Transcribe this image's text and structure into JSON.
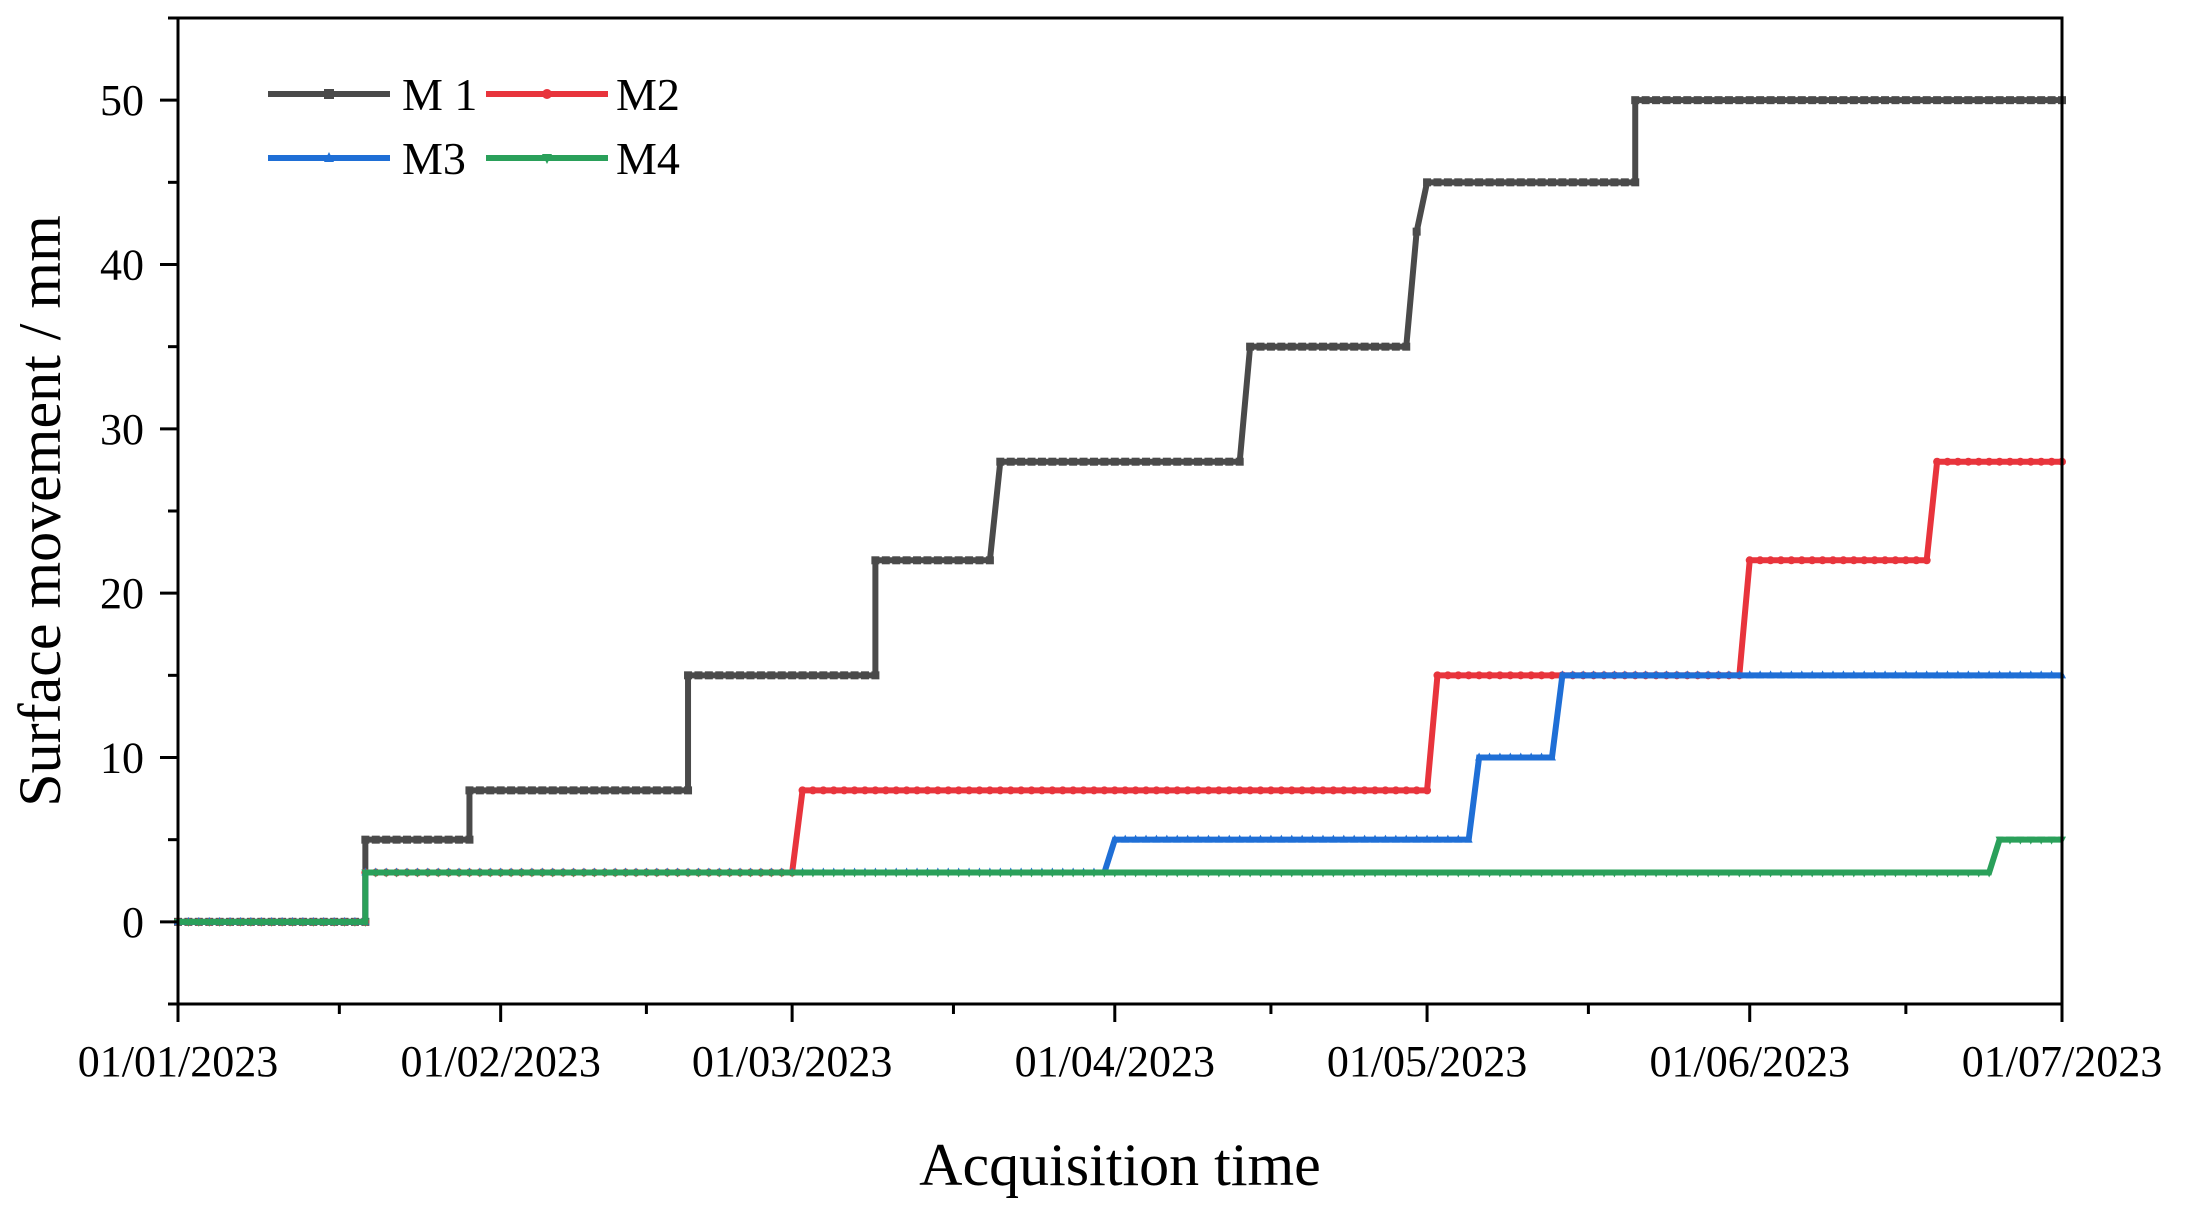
{
  "chart_data": {
    "type": "line",
    "xlabel": "Acquisition time",
    "ylabel": "Surface movement / mm",
    "x_ticks": [
      "01/01/2023",
      "01/02/2023",
      "01/03/2023",
      "01/04/2023",
      "01/05/2023",
      "01/06/2023",
      "01/07/2023"
    ],
    "y_ticks": [
      0,
      10,
      20,
      30,
      40,
      50
    ],
    "xlim": [
      "2023-01-01",
      "2023-07-01"
    ],
    "ylim": [
      -5,
      55
    ],
    "grid": false,
    "legend_position": "top-left",
    "series": [
      {
        "name": "M 1",
        "color": "#4a4a4a",
        "marker": "square",
        "points": [
          [
            "2023-01-01",
            0
          ],
          [
            "2023-01-19",
            0
          ],
          [
            "2023-01-19",
            5
          ],
          [
            "2023-01-29",
            5
          ],
          [
            "2023-01-29",
            8
          ],
          [
            "2023-02-19",
            8
          ],
          [
            "2023-02-19",
            15
          ],
          [
            "2023-03-09",
            15
          ],
          [
            "2023-03-09",
            22
          ],
          [
            "2023-03-20",
            22
          ],
          [
            "2023-03-21",
            28
          ],
          [
            "2023-04-13",
            28
          ],
          [
            "2023-04-14",
            35
          ],
          [
            "2023-04-29",
            35
          ],
          [
            "2023-04-30",
            42
          ],
          [
            "2023-05-01",
            45
          ],
          [
            "2023-05-21",
            45
          ],
          [
            "2023-05-21",
            50
          ],
          [
            "2023-07-01",
            50
          ]
        ]
      },
      {
        "name": "M2",
        "color": "#e8343c",
        "marker": "circle",
        "points": [
          [
            "2023-01-01",
            0
          ],
          [
            "2023-01-19",
            0
          ],
          [
            "2023-01-19",
            3
          ],
          [
            "2023-03-01",
            3
          ],
          [
            "2023-03-02",
            8
          ],
          [
            "2023-05-01",
            8
          ],
          [
            "2023-05-02",
            15
          ],
          [
            "2023-05-31",
            15
          ],
          [
            "2023-06-01",
            22
          ],
          [
            "2023-06-18",
            22
          ],
          [
            "2023-06-19",
            28
          ],
          [
            "2023-07-01",
            28
          ]
        ]
      },
      {
        "name": "M3",
        "color": "#1f6fd6",
        "marker": "triangle-up",
        "points": [
          [
            "2023-01-01",
            0
          ],
          [
            "2023-01-19",
            0
          ],
          [
            "2023-01-19",
            3
          ],
          [
            "2023-03-31",
            3
          ],
          [
            "2023-04-01",
            5
          ],
          [
            "2023-05-05",
            5
          ],
          [
            "2023-05-06",
            10
          ],
          [
            "2023-05-13",
            10
          ],
          [
            "2023-05-14",
            15
          ],
          [
            "2023-07-01",
            15
          ]
        ]
      },
      {
        "name": "M4",
        "color": "#2aa05a",
        "marker": "triangle-down",
        "points": [
          [
            "2023-01-01",
            0
          ],
          [
            "2023-01-19",
            0
          ],
          [
            "2023-01-19",
            3
          ],
          [
            "2023-06-24",
            3
          ],
          [
            "2023-06-25",
            5
          ],
          [
            "2023-07-01",
            5
          ]
        ]
      }
    ]
  }
}
